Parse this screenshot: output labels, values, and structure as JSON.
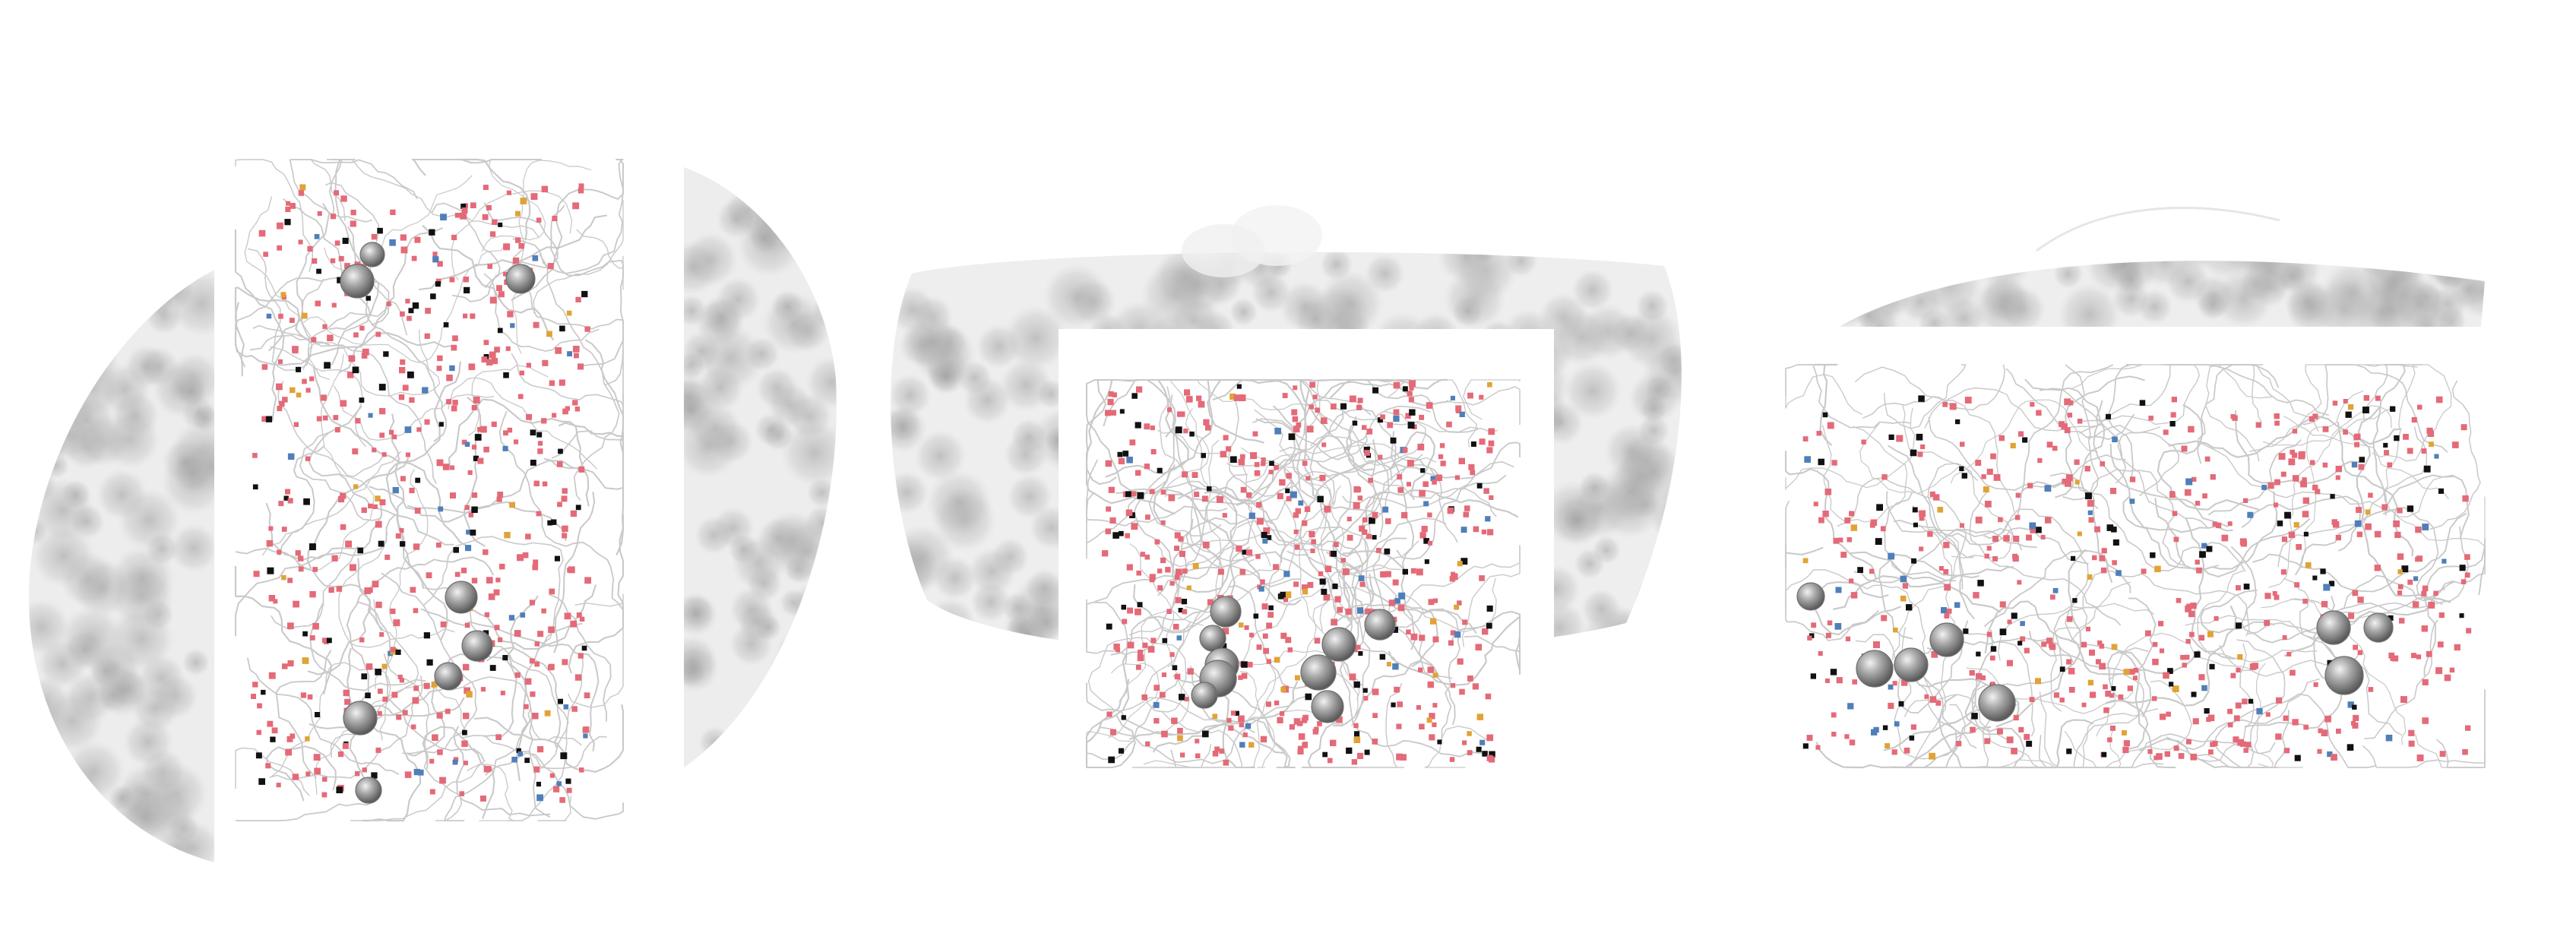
{
  "figure": {
    "views": [
      {
        "name": "view-top",
        "projection": "top"
      },
      {
        "name": "view-front",
        "projection": "front"
      },
      {
        "name": "view-side",
        "projection": "side"
      }
    ],
    "colors": {
      "background": "#ffffff",
      "mesh": "#b9b9b9",
      "tracings": "#c9c9c9",
      "marker_pink": "#e46a78",
      "marker_black": "#111111",
      "marker_blue": "#4f7fb8",
      "marker_orange": "#e0a335",
      "soma": "#8f8f8f"
    },
    "icons": [
      "neuron-tracing",
      "synapse-marker",
      "soma-sphere",
      "tissue-mesh"
    ]
  }
}
